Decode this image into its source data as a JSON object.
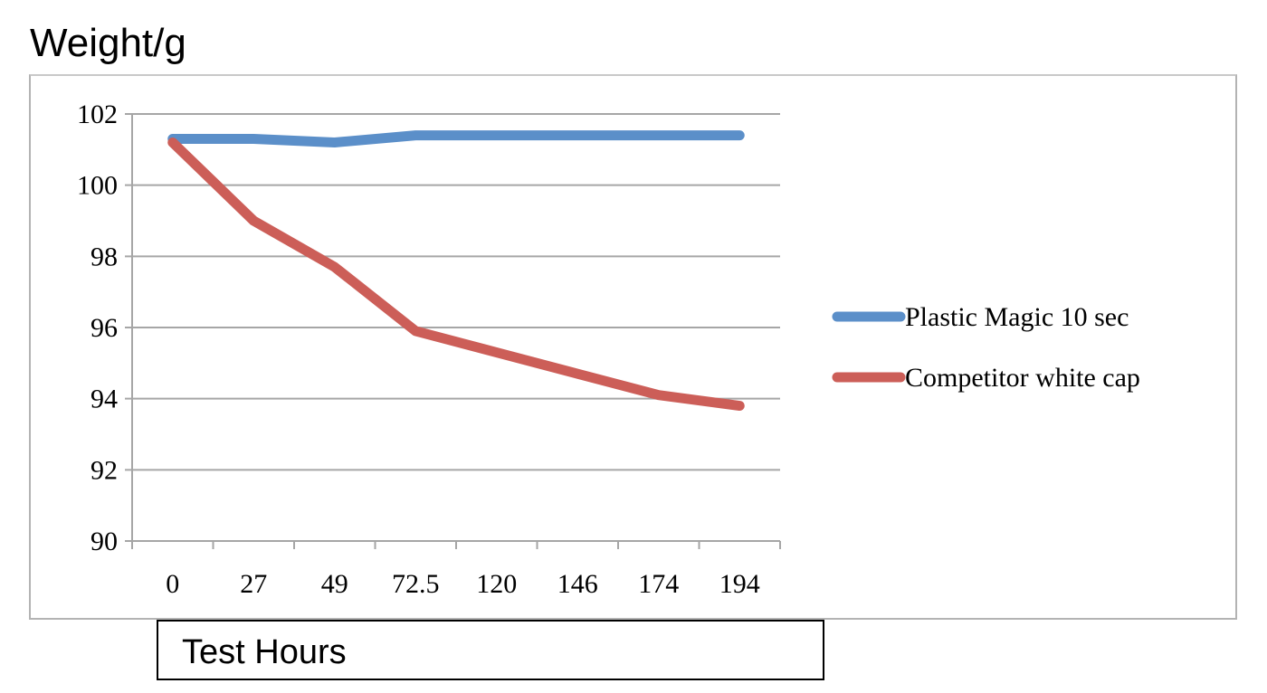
{
  "chart_data": {
    "type": "line",
    "title": "Weight/g",
    "xlabel": "Test Hours",
    "ylabel": "Weight/g",
    "categories": [
      "0",
      "27",
      "49",
      "72.5",
      "120",
      "146",
      "174",
      "194"
    ],
    "series": [
      {
        "name": "Plastic Magic 10 sec",
        "color": "#5B8FC9",
        "values": [
          101.3,
          101.3,
          101.2,
          101.4,
          101.4,
          101.4,
          101.4,
          101.4
        ]
      },
      {
        "name": "Competitor white cap",
        "color": "#CC5E58",
        "values": [
          101.2,
          99.0,
          97.7,
          95.9,
          95.3,
          94.7,
          94.1,
          93.8
        ]
      }
    ],
    "ylim": [
      90,
      102
    ],
    "yticks": [
      90,
      92,
      94,
      96,
      98,
      100,
      102
    ],
    "grid": true,
    "legend_position": "right"
  },
  "labels": {
    "title": "Weight/g",
    "xlabel": "Test Hours"
  }
}
